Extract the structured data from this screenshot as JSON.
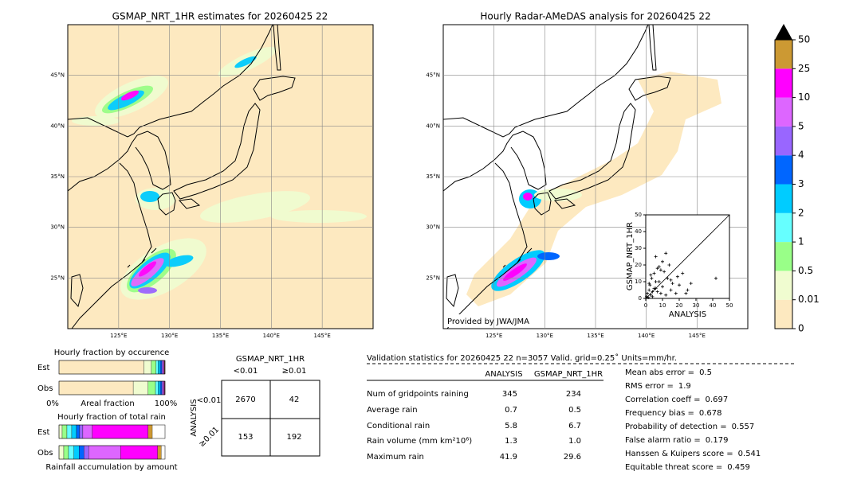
{
  "left_map": {
    "title": "GSMAP_NRT_1HR estimates for 20260425 22",
    "lonlim": [
      120,
      150
    ],
    "latlim": [
      20,
      50
    ],
    "lon_ticks": [
      {
        "value": 125,
        "label": "125°E"
      },
      {
        "value": 130,
        "label": "130°E"
      },
      {
        "value": 135,
        "label": "135°E"
      },
      {
        "value": 140,
        "label": "140°E"
      },
      {
        "value": 145,
        "label": "145°E"
      }
    ],
    "lat_ticks": [
      {
        "value": 25,
        "label": "25°N"
      },
      {
        "value": 30,
        "label": "30°N"
      },
      {
        "value": 35,
        "label": "35°N"
      },
      {
        "value": 40,
        "label": "40°N"
      },
      {
        "value": 45,
        "label": "45°N"
      }
    ]
  },
  "right_map": {
    "title": "Hourly Radar-AMeDAS analysis for 20260425 22",
    "credit": "Provided by JWA/JMA",
    "lonlim": [
      120,
      150
    ],
    "latlim": [
      20,
      50
    ],
    "lon_ticks": [
      {
        "value": 125,
        "label": "125°E"
      },
      {
        "value": 130,
        "label": "130°E"
      },
      {
        "value": 135,
        "label": "135°E"
      },
      {
        "value": 140,
        "label": "140°E"
      },
      {
        "value": 145,
        "label": "145°E"
      }
    ],
    "lat_ticks": [
      {
        "value": 25,
        "label": "25°N"
      },
      {
        "value": 30,
        "label": "30°N"
      },
      {
        "value": 35,
        "label": "35°N"
      },
      {
        "value": 40,
        "label": "40°N"
      },
      {
        "value": 45,
        "label": "45°N"
      }
    ]
  },
  "colorbar": {
    "levels": [
      0,
      0.01,
      0.5,
      1,
      2,
      3,
      4,
      5,
      10,
      25,
      50
    ],
    "colors": [
      "#fde9c0",
      "#f0fcd0",
      "#99ff88",
      "#66ffff",
      "#00ccff",
      "#0066ff",
      "#9966ff",
      "#dd66ff",
      "#ff00ff",
      "#cc9933"
    ]
  },
  "scatter": {
    "type": "scatter",
    "xlabel": "ANALYSIS",
    "ylabel": "GSMAP_NRT_1HR",
    "xlim": [
      0,
      50
    ],
    "ylim": [
      0,
      50
    ],
    "xticks": [
      0,
      10,
      20,
      30,
      40,
      50
    ],
    "yticks": [
      0,
      10,
      20,
      30,
      40,
      50
    ],
    "x": [
      0.5,
      1,
      1.5,
      2,
      2.5,
      3,
      3.5,
      4,
      5,
      6,
      7,
      8,
      9,
      10,
      11,
      12,
      13,
      14,
      15,
      16,
      18,
      20,
      22,
      25,
      4,
      6,
      8,
      3,
      2,
      10,
      7,
      5,
      12,
      41.9,
      27,
      24,
      19,
      9,
      6,
      15
    ],
    "y": [
      1,
      3,
      0.5,
      5,
      8,
      2,
      12,
      4,
      15,
      6,
      18,
      10,
      3,
      7,
      16,
      2,
      12,
      20,
      5,
      9,
      3,
      8,
      15,
      5,
      1,
      10,
      19,
      14,
      9,
      22,
      4,
      6,
      27,
      12,
      9,
      3,
      13,
      17,
      25,
      11
    ]
  },
  "occurrence": {
    "title": "Hourly fraction by occurence",
    "rows": [
      "Est",
      "Obs"
    ],
    "axis_labels": [
      "0%",
      "Areal fraction",
      "100%"
    ],
    "est": [
      80,
      7,
      4.5,
      2,
      2,
      1.5,
      1,
      1,
      0.5,
      0.5
    ],
    "obs": [
      70,
      14,
      7,
      2.5,
      2,
      1.5,
      1,
      1,
      0.6,
      0.4
    ]
  },
  "total_rain": {
    "title": "Hourly fraction of total rain",
    "rows": [
      "Est",
      "Obs"
    ],
    "footer": "Rainfall accumulation by amount",
    "est": [
      0,
      3,
      4.5,
      4.5,
      4.5,
      3,
      3,
      9,
      52.5,
      4
    ],
    "obs": [
      0,
      4.5,
      4.5,
      5,
      5,
      4.5,
      4.5,
      30,
      35,
      3.5
    ]
  },
  "contingency": {
    "title": "GSMAP_NRT_1HR",
    "columns": [
      "<0.01",
      "≥0.01"
    ],
    "row_title": "ANALYSIS",
    "rows": [
      "<0.01",
      "≥0.01"
    ],
    "cells": [
      [
        2670,
        42
      ],
      [
        153,
        192
      ]
    ]
  },
  "validation": {
    "header": "Validation statistics for 20260425 22  n=3057 Valid. grid=0.25˚ Units=mm/hr.",
    "columns": [
      "ANALYSIS",
      "GSMAP_NRT_1HR"
    ],
    "rows": [
      [
        "Num of gridpoints raining",
        345,
        234
      ],
      [
        "Average rain",
        0.7,
        0.5
      ],
      [
        "Conditional rain",
        5.8,
        6.7
      ],
      [
        "Rain volume (mm km²10⁶)",
        1.3,
        "1.0"
      ],
      [
        "Maximum rain",
        41.9,
        29.6
      ]
    ],
    "scores": [
      [
        "Mean abs error =",
        0.5
      ],
      [
        "RMS error =",
        1.9
      ],
      [
        "Correlation coeff =",
        0.697
      ],
      [
        "Frequency bias =",
        0.678
      ],
      [
        "Probability of detection =",
        0.557
      ],
      [
        "False alarm ratio =",
        0.179
      ],
      [
        "Hanssen & Kuipers score =",
        0.541
      ],
      [
        "Equitable threat score =",
        0.459
      ]
    ]
  }
}
